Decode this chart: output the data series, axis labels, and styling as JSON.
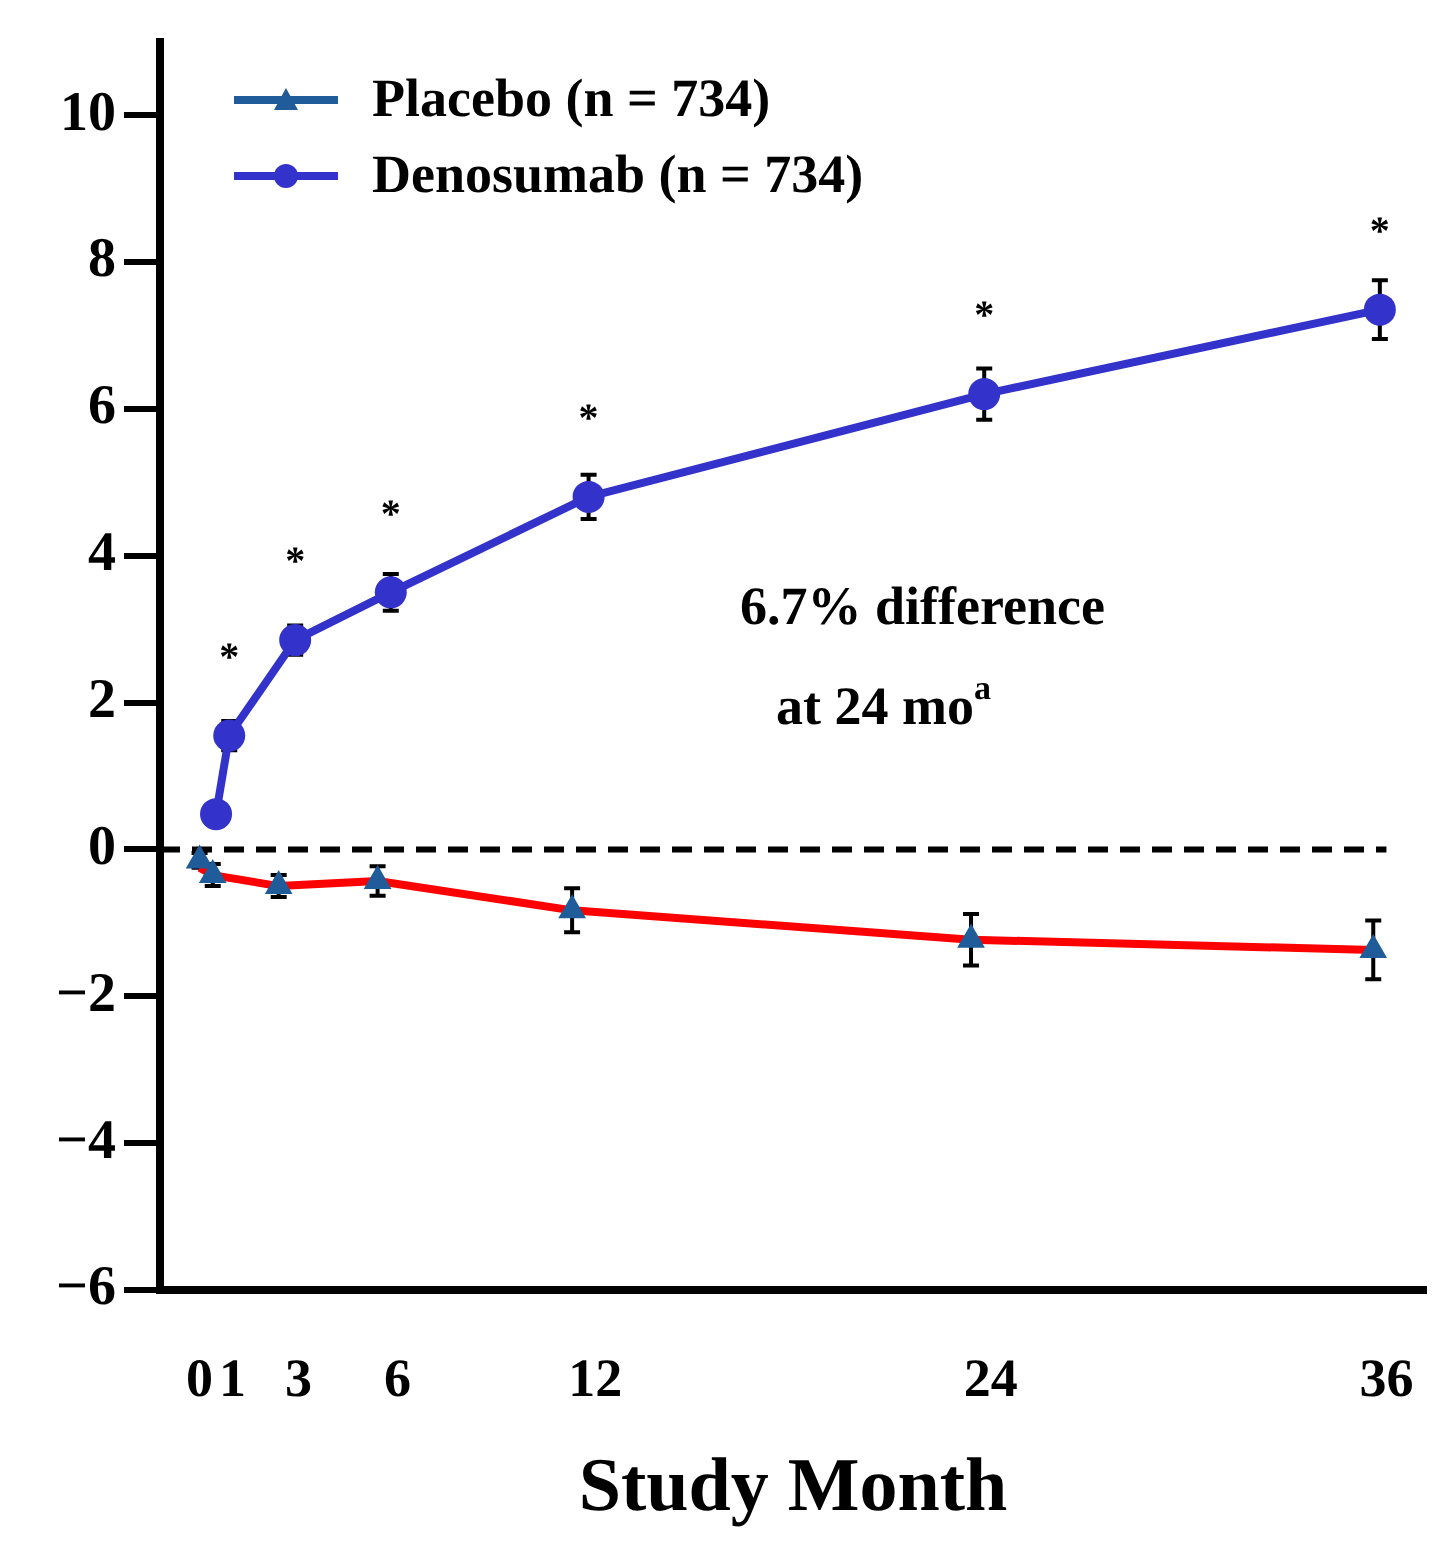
{
  "chart_data": {
    "type": "line",
    "xlabel": "Study Month",
    "x": [
      0.5,
      0.9,
      2.9,
      5.8,
      11.8,
      23.8,
      35.8
    ],
    "series": [
      {
        "name": "Placebo (n = 734)",
        "type": "scatter",
        "color": "#1f5c99",
        "marker": "triangle",
        "x": [
          0,
          0.4,
          2.4,
          5.4,
          11.3,
          23.4,
          35.6
        ],
        "values": [
          -0.15,
          -0.35,
          -0.5,
          -0.43,
          -0.83,
          -1.23,
          -1.37
        ],
        "errors": [
          0.1,
          0.15,
          0.15,
          0.2,
          0.3,
          0.35,
          0.4
        ]
      },
      {
        "type": "line",
        "color": "#ff0000",
        "marker": "none",
        "x": [
          0,
          0.4,
          2.4,
          5.4,
          11.3,
          23.4,
          35.6
        ],
        "values": [
          -0.25,
          -0.35,
          -0.5,
          -0.43,
          -0.83,
          -1.23,
          -1.37
        ]
      },
      {
        "name": "Denosumab (n = 734)",
        "color": "#3333cc",
        "marker": "circle",
        "values": [
          0.48,
          1.55,
          2.85,
          3.5,
          4.8,
          6.2,
          7.35
        ],
        "errors": [
          null,
          0.2,
          0.2,
          0.25,
          0.3,
          0.35,
          0.4
        ]
      }
    ],
    "xlim": [
      -1.2,
      37.2
    ],
    "xticks": [
      0,
      1,
      3,
      6,
      12,
      24,
      36
    ],
    "ylim": [
      -6,
      11
    ],
    "yticks": [
      -6,
      -4,
      -2,
      0,
      2,
      4,
      6,
      8,
      10
    ],
    "ref_lines": [
      {
        "axis": "y",
        "value": 0,
        "color": "#000000",
        "line_style": "dashed"
      }
    ],
    "annotations": [
      "6.7% difference",
      "at 24 mo$^{a}$",
      {
        "text": "*",
        "x": 0.9,
        "y": 1.55
      },
      {
        "text": "*",
        "x": 2.9,
        "y": 2.85
      },
      {
        "text": "*",
        "x": 5.8,
        "y": 3.5
      },
      {
        "text": "*",
        "x": 11.8,
        "y": 4.8
      },
      {
        "text": "*",
        "x": 23.8,
        "y": 6.2
      },
      {
        "text": "*",
        "x": 35.8,
        "y": 7.35
      }
    ],
    "legend": "top left",
    "grid": false,
    "line_style": "solid"
  }
}
